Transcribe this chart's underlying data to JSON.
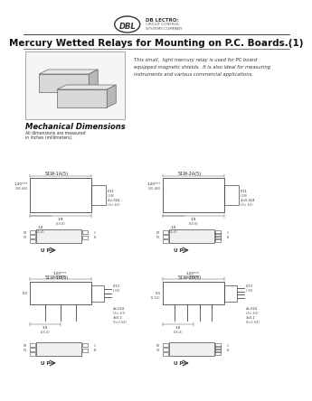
{
  "title": "Mercury Wetted Relays for Mounting on P.C. Boards.(1)",
  "company": "DB LECTRO:",
  "company_sub1": "CIRCUIT CONTROL",
  "company_sub2": "SYSTEMS COMPANY",
  "description_lines": [
    "This small,  light mercury relay is used for PC board",
    "equipped magnetic shields.  It is also ideal for measuring",
    "instruments and various commercial applications."
  ],
  "mech_title": "Mechanical Dimensions",
  "mech_sub1": "All dimensions are measured",
  "mech_sub2": "in inches (millimeters).",
  "bg_color": "#ffffff",
  "line_color": "#444444",
  "text_color": "#222222",
  "dim_color": "#555555",
  "top_left_label": "51W-1A(5)",
  "top_right_label": "51W-2A(5)",
  "bot_left_label": "51W-1B(5)",
  "bot_right_label": "51W-2B(5)"
}
